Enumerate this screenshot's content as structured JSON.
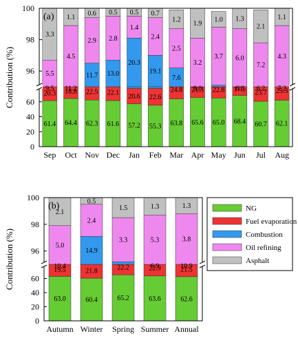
{
  "colors": {
    "NG": "#66cc33",
    "Fuel evaporation": "#ee3333",
    "Combustion": "#3399ee",
    "Oil refining": "#ee88ee",
    "Asphalt": "#c0c0c0"
  },
  "legend_entries": [
    "NG",
    "Fuel evaporation",
    "Combustion",
    "Oil refining",
    "Asphalt"
  ],
  "chart_data": [
    {
      "type": "bar",
      "stacked": true,
      "broken_axis": true,
      "panel_label": "(a)",
      "ylabel": "Contribution (%)",
      "categories": [
        "Sep",
        "Oct",
        "Nov",
        "Dec",
        "Jan",
        "Feb",
        "Mar",
        "Apr",
        "May",
        "Jun",
        "Jul",
        "Aug"
      ],
      "lower_ylim": [
        0,
        80
      ],
      "lower_yticks": [
        "0",
        "20",
        "40",
        "60"
      ],
      "upper_ylim": [
        95,
        100
      ],
      "upper_yticks": [
        "96",
        "98",
        "100"
      ],
      "series": [
        {
          "name": "NG",
          "values": [
            61.4,
            64.4,
            62.3,
            61.6,
            57.2,
            55.3,
            63.8,
            65.6,
            65.0,
            68.4,
            60.7,
            62.1
          ]
        },
        {
          "name": "Fuel evaporation",
          "values": [
            20.3,
            18.8,
            22.5,
            22.1,
            20.6,
            22.6,
            24.8,
            21.3,
            22.8,
            17.5,
            23.7,
            25.3
          ]
        },
        {
          "name": "Combustion",
          "values": [
            9.5,
            11.2,
            11.7,
            13.0,
            20.3,
            19.1,
            7.6,
            8.0,
            7.3,
            6.8,
            6.2,
            7.2
          ]
        },
        {
          "name": "Oil refining",
          "values": [
            5.5,
            4.5,
            2.9,
            2.8,
            1.4,
            2.4,
            2.5,
            3.2,
            3.7,
            6.0,
            7.2,
            4.3
          ]
        },
        {
          "name": "Asphalt",
          "values": [
            3.3,
            1.1,
            0.6,
            0.5,
            0.5,
            0.7,
            1.2,
            1.9,
            1.0,
            1.3,
            2.1,
            1.1
          ]
        }
      ],
      "labels": {
        "NG": [
          "61.4",
          "64.4",
          "62.3",
          "61.6",
          "57.2",
          "55.3",
          "63.8",
          "65.6",
          "65.0",
          "68.4",
          "60.7",
          "62.1"
        ],
        "Fuel evaporation": [
          "20.3",
          "18.8",
          "22.5",
          "22.1",
          "20.6",
          "22.6",
          "24.8",
          "21.3",
          "22.8",
          "17.5",
          "23.7",
          "25.3"
        ],
        "Combustion_lower": [
          "9.5",
          "11.2",
          "",
          "",
          "",
          "",
          "",
          "8.0",
          "",
          "6.8",
          "6.2",
          "7.2"
        ],
        "Combustion_upper": [
          "",
          "",
          "11.7",
          "13.0",
          "20.3",
          "19.1",
          "7.6",
          "",
          "",
          "",
          "",
          ""
        ],
        "Oil refining": [
          "5.5",
          "4.5",
          "2.9",
          "2.8",
          "1.4",
          "2.4",
          "2.5",
          "3.2",
          "3.7",
          "6.0",
          "7.2",
          "4.3"
        ],
        "Asphalt": [
          "3.3",
          "1.1",
          "0.6",
          "0.5",
          "0.5",
          "0.7",
          "1.2",
          "1.9",
          "1.0",
          "1.3",
          "2.1",
          "1.1"
        ]
      }
    },
    {
      "type": "bar",
      "stacked": true,
      "broken_axis": true,
      "panel_label": "(b)",
      "ylabel": "Contribution (%)",
      "categories": [
        "Autumn",
        "Winter",
        "Spring",
        "Summer",
        "Annual"
      ],
      "lower_ylim": [
        0,
        80
      ],
      "lower_yticks": [
        "0",
        "20",
        "40",
        "60"
      ],
      "upper_ylim": [
        95,
        100
      ],
      "upper_yticks": [
        "96",
        "98",
        "100"
      ],
      "series": [
        {
          "name": "NG",
          "values": [
            63.0,
            60.4,
            65.2,
            63.6,
            62.6
          ]
        },
        {
          "name": "Fuel evaporation",
          "values": [
            19.5,
            21.8,
            22.2,
            22.9,
            21.5
          ]
        },
        {
          "name": "Combustion",
          "values": [
            10.4,
            14.9,
            7.8,
            6.9,
            10.9
          ]
        },
        {
          "name": "Oil refining",
          "values": [
            5.0,
            2.4,
            3.3,
            5.3,
            3.8
          ]
        },
        {
          "name": "Asphalt",
          "values": [
            2.1,
            0.5,
            1.5,
            1.3,
            1.3
          ]
        }
      ],
      "labels": {
        "NG": [
          "63.0",
          "60.4",
          "65.2",
          "63.6",
          "62.6"
        ],
        "Fuel evaporation": [
          "19.5",
          "21.8",
          "22.2",
          "22.9",
          "21.5"
        ],
        "Combustion_lower": [
          "10.4",
          "",
          "",
          "6.9",
          "10.9"
        ],
        "Combustion_upper": [
          "",
          "14.9",
          "",
          "",
          ""
        ],
        "Oil refining": [
          "5.0",
          "2.4",
          "3.3",
          "5.3",
          "3.8"
        ],
        "Asphalt": [
          "2.1",
          "0.5",
          "1.5",
          "1.3",
          "1.3"
        ]
      }
    }
  ]
}
